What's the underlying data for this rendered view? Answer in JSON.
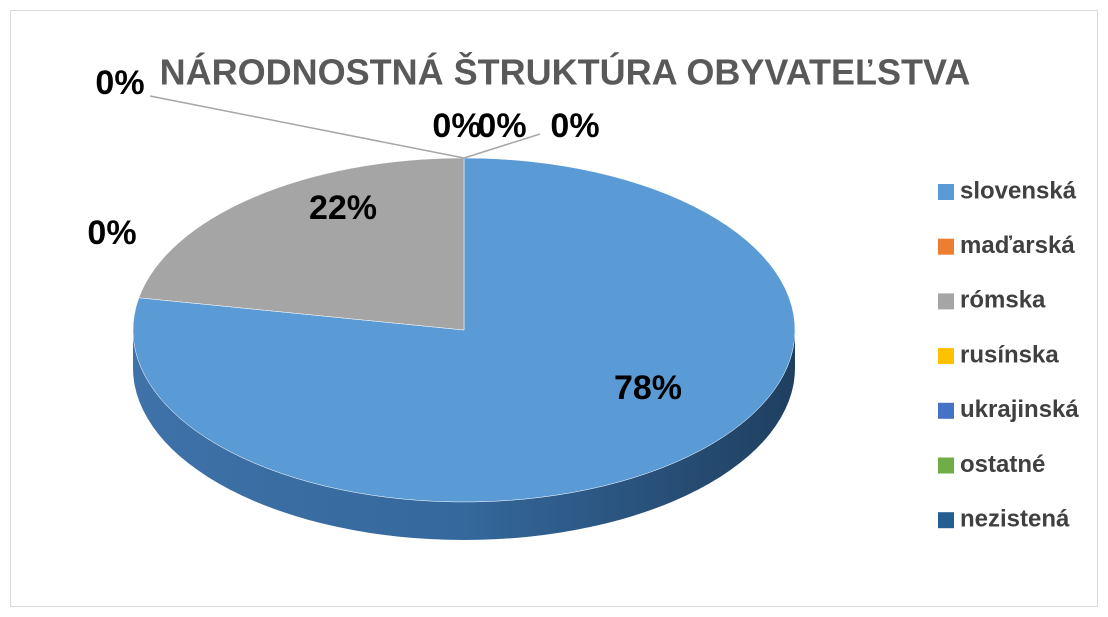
{
  "chart_data": {
    "type": "pie",
    "title": "NÁRODNOSTNÁ ŠTRUKTÚRA OBYVATEĽSTVA",
    "categories": [
      "slovenská",
      "maďarská",
      "rómska",
      "rusínska",
      "ukrajinská",
      "ostatné",
      "nezistená"
    ],
    "values": [
      78,
      0,
      22,
      0,
      0,
      0,
      0
    ],
    "value_labels": [
      "78%",
      "0%",
      "22%",
      "0%",
      "0%",
      "0%",
      "0%"
    ],
    "colors": [
      "#5b9bd5",
      "#ed7d31",
      "#a5a5a5",
      "#ffc000",
      "#4472c4",
      "#70ad47",
      "#255e91"
    ],
    "legend": "right"
  }
}
